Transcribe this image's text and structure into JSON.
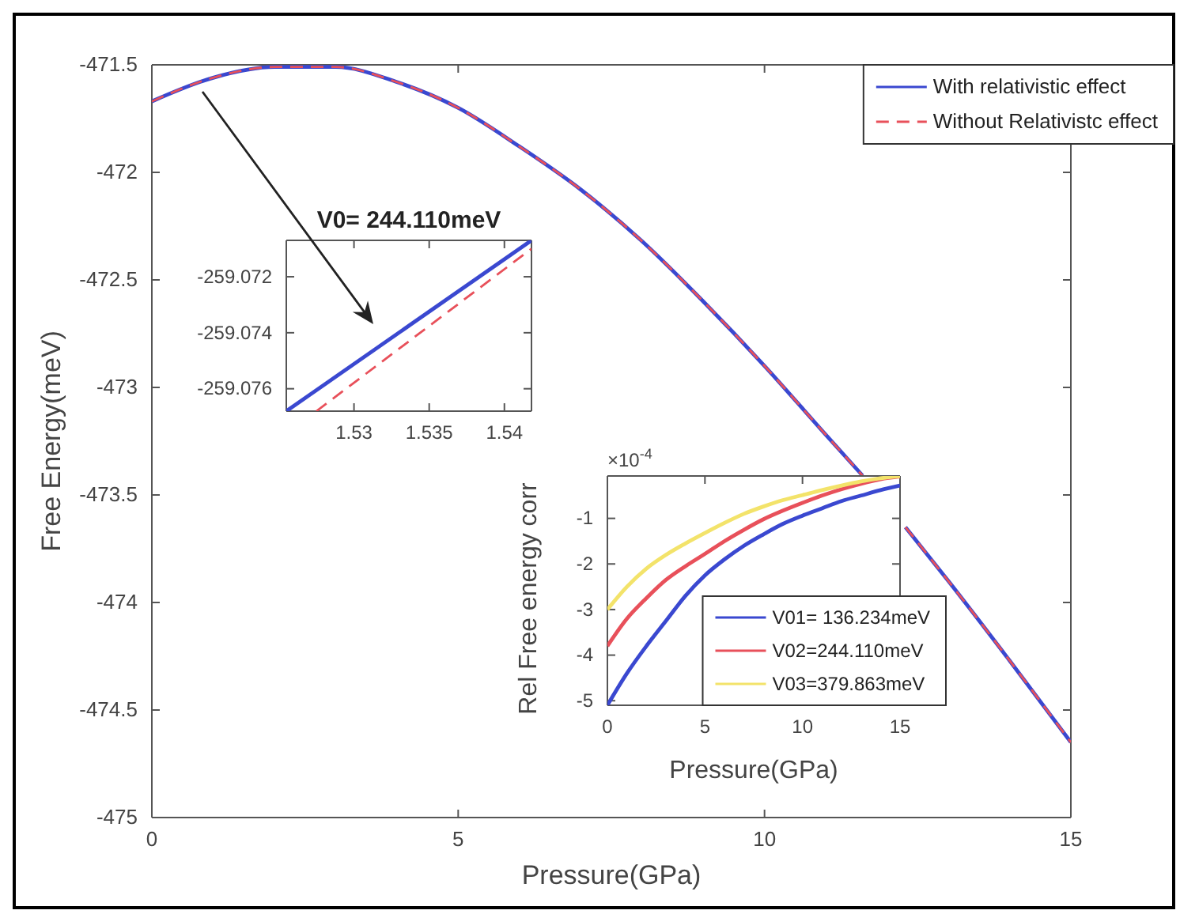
{
  "chart_data": [
    {
      "type": "line",
      "xlabel": "Pressure(GPa)",
      "ylabel": "Free Energy(meV)",
      "xlim": [
        0,
        15
      ],
      "ylim": [
        -475,
        -471.5
      ],
      "xticks": [
        0,
        5,
        10,
        15
      ],
      "yticks": [
        -475,
        -474.5,
        -474,
        -473.5,
        -473,
        -472.5,
        -472,
        -471.5
      ],
      "legend": "top right",
      "grid": false,
      "x": [
        0,
        1,
        2,
        3,
        4,
        5,
        6,
        7,
        8,
        9,
        10,
        11,
        11.6,
        11.9,
        12.3,
        13,
        14,
        15
      ],
      "series": [
        {
          "name": "With relativistic effect",
          "color": "#3a48d0",
          "line_style": "solid",
          "values": [
            -471.67,
            -471.56,
            -471.51,
            -471.51,
            -471.58,
            -471.7,
            -471.88,
            -472.08,
            -472.32,
            -472.6,
            -472.9,
            -473.22,
            -473.41,
            null,
            -473.65,
            -473.9,
            -474.27,
            -474.65
          ]
        },
        {
          "name": "Without Relativistc effect",
          "color": "#e8505a",
          "line_style": "dashed",
          "values": [
            -471.67,
            -471.56,
            -471.51,
            -471.51,
            -471.58,
            -471.7,
            -471.88,
            -472.08,
            -472.32,
            -472.6,
            -472.9,
            -473.22,
            -473.41,
            null,
            -473.65,
            -473.9,
            -474.27,
            -474.65
          ]
        }
      ]
    },
    {
      "type": "line",
      "title": "V0= 244.110meV",
      "xlim": [
        1.5255,
        1.5418
      ],
      "ylim": [
        -259.0768,
        -259.0707
      ],
      "xticks": [
        1.53,
        1.535,
        1.54
      ],
      "yticks": [
        -259.076,
        -259.074,
        -259.072
      ],
      "grid": false,
      "series": [
        {
          "color": "#3a48d0",
          "line_style": "solid",
          "x": [
            1.5255,
            1.5418
          ],
          "values": [
            -259.0768,
            -259.0707
          ]
        },
        {
          "color": "#e8505a",
          "line_style": "dashed",
          "x": [
            1.5275,
            1.5418
          ],
          "values": [
            -259.0768,
            -259.071
          ]
        }
      ]
    },
    {
      "type": "line",
      "xlabel": "Pressure(GPa)",
      "ylabel": "Rel Free energy corr",
      "xlim": [
        0,
        15
      ],
      "ylim": [
        -5.1,
        -0.07
      ],
      "xticks": [
        0,
        5,
        10,
        15
      ],
      "yticks": [
        -5,
        -4,
        -3,
        -2,
        -1
      ],
      "legend": "bottom right",
      "grid": false,
      "annotations": [
        "×10$^{-4}$"
      ],
      "x": [
        0,
        1,
        2,
        3,
        4,
        5,
        6,
        7,
        8,
        9,
        10,
        11,
        12,
        13,
        14,
        15
      ],
      "series": [
        {
          "name": "V01= 136.234meV",
          "color": "#3a48d0",
          "values": [
            -5.1,
            -4.4,
            -3.8,
            -3.25,
            -2.7,
            -2.25,
            -1.9,
            -1.6,
            -1.35,
            -1.12,
            -0.94,
            -0.78,
            -0.62,
            -0.5,
            -0.38,
            -0.28
          ]
        },
        {
          "name": "V02=244.110meV",
          "color": "#e8505a",
          "values": [
            -3.8,
            -3.2,
            -2.75,
            -2.35,
            -2.05,
            -1.78,
            -1.5,
            -1.25,
            -1.02,
            -0.83,
            -0.66,
            -0.5,
            -0.36,
            -0.24,
            -0.14,
            -0.08
          ]
        },
        {
          "name": "V03=379.863meV",
          "color": "#f3e36a",
          "values": [
            -3.0,
            -2.5,
            -2.1,
            -1.8,
            -1.55,
            -1.32,
            -1.1,
            -0.9,
            -0.74,
            -0.6,
            -0.49,
            -0.38,
            -0.28,
            -0.19,
            -0.12,
            -0.07
          ]
        }
      ]
    }
  ]
}
